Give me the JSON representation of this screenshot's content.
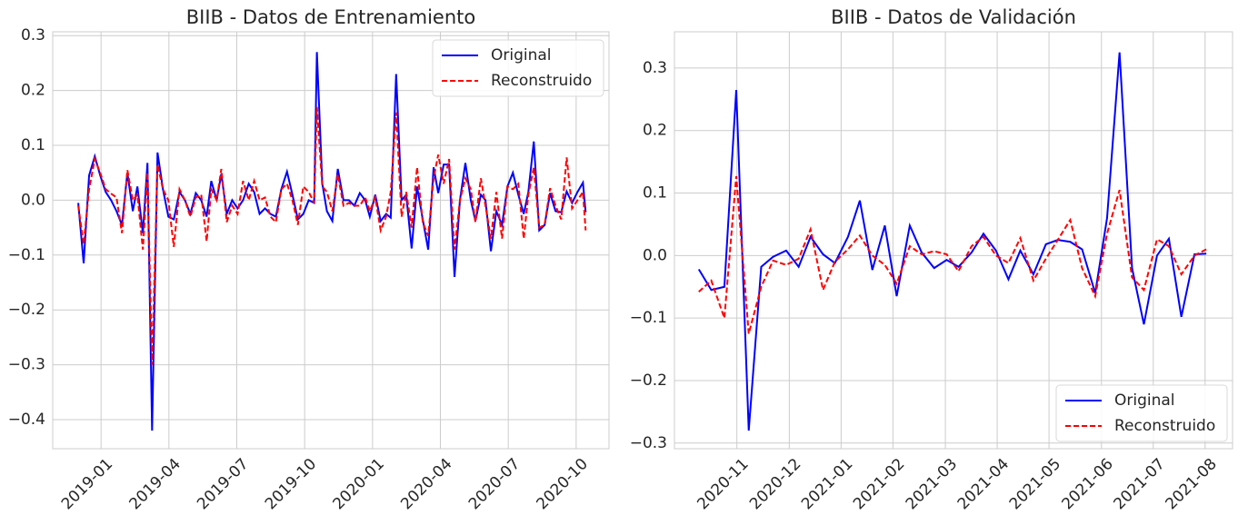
{
  "chart_data": [
    {
      "type": "line",
      "title": "BIIB - Datos de Entrenamiento",
      "grid": true,
      "legend": "upper right",
      "xlim": [
        2018.822,
        2020.871
      ],
      "ylim": [
        -0.453,
        0.307
      ],
      "xticks": [
        {
          "value": 2019,
          "label": "2019-01"
        },
        {
          "value": 2019.25,
          "label": "2019-04"
        },
        {
          "value": 2019.5,
          "label": "2019-07"
        },
        {
          "value": 2019.75,
          "label": "2019-10"
        },
        {
          "value": 2020,
          "label": "2020-01"
        },
        {
          "value": 2020.25,
          "label": "2020-04"
        },
        {
          "value": 2020.5,
          "label": "2020-07"
        },
        {
          "value": 2020.75,
          "label": "2020-10"
        }
      ],
      "yticks": [
        {
          "value": -0.4,
          "label": "−0.4"
        },
        {
          "value": -0.3,
          "label": "−0.3"
        },
        {
          "value": -0.2,
          "label": "−0.2"
        },
        {
          "value": -0.1,
          "label": "−0.1"
        },
        {
          "value": 0,
          "label": "0.0"
        },
        {
          "value": 0.1,
          "label": "0.1"
        },
        {
          "value": 0.2,
          "label": "0.2"
        },
        {
          "value": 0.3,
          "label": "0.3"
        }
      ],
      "x": [
        2018.916,
        2018.936,
        2018.956,
        2018.977,
        2018.997,
        2019.017,
        2019.037,
        2019.057,
        2019.077,
        2019.097,
        2019.117,
        2019.134,
        2019.154,
        2019.171,
        2019.188,
        2019.208,
        2019.228,
        2019.248,
        2019.268,
        2019.289,
        2019.309,
        2019.329,
        2019.349,
        2019.369,
        2019.389,
        2019.406,
        2019.426,
        2019.443,
        2019.463,
        2019.483,
        2019.503,
        2019.523,
        2019.544,
        2019.564,
        2019.584,
        2019.604,
        2019.624,
        2019.644,
        2019.664,
        2019.685,
        2019.705,
        2019.725,
        2019.745,
        2019.765,
        2019.785,
        2019.795,
        2019.815,
        2019.832,
        2019.852,
        2019.872,
        2019.893,
        2019.913,
        2019.933,
        2019.953,
        2019.973,
        2019.99,
        2020.01,
        2020.03,
        2020.05,
        2020.067,
        2020.087,
        2020.107,
        2020.124,
        2020.144,
        2020.164,
        2020.185,
        2020.205,
        2020.225,
        2020.242,
        2020.262,
        2020.282,
        2020.302,
        2020.322,
        2020.342,
        2020.362,
        2020.379,
        2020.399,
        2020.416,
        2020.436,
        2020.456,
        2020.477,
        2020.497,
        2020.517,
        2020.537,
        2020.557,
        2020.574,
        2020.594,
        2020.614,
        2020.634,
        2020.654,
        2020.674,
        2020.695,
        2020.715,
        2020.735,
        2020.755,
        2020.775,
        2020.785
      ],
      "series": [
        {
          "name": "Original",
          "color": "#0000ff",
          "dash": false,
          "values": [
            -0.005,
            -0.115,
            0.045,
            0.08,
            0.045,
            0.015,
            0.0,
            -0.02,
            -0.045,
            0.05,
            -0.02,
            0.025,
            -0.06,
            0.068,
            -0.42,
            0.087,
            0.02,
            -0.03,
            -0.035,
            0.015,
            0.0,
            -0.025,
            0.013,
            0.0,
            -0.03,
            0.035,
            0.0,
            0.048,
            -0.025,
            0.0,
            -0.015,
            0.0,
            0.03,
            0.015,
            -0.025,
            -0.015,
            -0.025,
            -0.03,
            0.02,
            0.052,
            0.01,
            -0.035,
            -0.025,
            0.0,
            -0.005,
            0.27,
            0.03,
            -0.02,
            -0.038,
            0.057,
            0.0,
            0.0,
            -0.01,
            0.013,
            0.0,
            -0.03,
            0.01,
            -0.038,
            -0.025,
            -0.032,
            0.23,
            0.0,
            0.01,
            -0.088,
            0.025,
            -0.035,
            -0.09,
            0.06,
            0.013,
            0.065,
            0.065,
            -0.14,
            0.0,
            0.068,
            0.0,
            -0.038,
            0.01,
            0.0,
            -0.093,
            -0.02,
            -0.045,
            0.025,
            0.05,
            0.01,
            -0.025,
            0.015,
            0.107,
            -0.055,
            -0.045,
            0.013,
            -0.02,
            -0.022,
            0.016,
            -0.005,
            0.015,
            0.032,
            -0.022
          ]
        },
        {
          "name": "Reconstruido",
          "color": "#ff0000",
          "dash": true,
          "values": [
            -0.01,
            -0.08,
            0.02,
            0.075,
            0.05,
            0.02,
            0.012,
            0.005,
            -0.06,
            0.055,
            0.0,
            0.01,
            -0.09,
            0.05,
            -0.3,
            0.065,
            0.02,
            0.0,
            -0.085,
            0.02,
            0.0,
            -0.03,
            0.005,
            0.01,
            -0.075,
            0.02,
            0.0,
            0.057,
            -0.04,
            -0.01,
            -0.025,
            0.035,
            0.0,
            0.035,
            0.0,
            0.005,
            -0.03,
            -0.04,
            0.02,
            0.03,
            0.0,
            -0.045,
            0.025,
            0.015,
            -0.005,
            0.17,
            0.025,
            0.015,
            -0.02,
            0.047,
            -0.01,
            -0.005,
            -0.01,
            -0.01,
            0.005,
            -0.02,
            0.005,
            -0.055,
            -0.03,
            0.015,
            0.16,
            -0.03,
            0.015,
            -0.05,
            0.06,
            -0.04,
            -0.065,
            0.04,
            0.083,
            0.03,
            0.075,
            -0.09,
            0.0,
            0.04,
            0.02,
            -0.04,
            0.04,
            -0.01,
            -0.07,
            0.015,
            -0.07,
            0.025,
            0.02,
            0.03,
            -0.07,
            0.01,
            0.06,
            -0.05,
            -0.045,
            0.022,
            -0.01,
            -0.035,
            0.078,
            -0.015,
            0.0,
            0.015,
            -0.055
          ]
        }
      ]
    },
    {
      "type": "line",
      "title": "BIIB - Datos de Validación",
      "grid": true,
      "legend": "lower right",
      "xlim": [
        2020.733,
        2021.627
      ],
      "ylim": [
        -0.309,
        0.358
      ],
      "xticks": [
        {
          "value": 2020.833,
          "label": "2020-11"
        },
        {
          "value": 2020.917,
          "label": "2020-12"
        },
        {
          "value": 2021,
          "label": "2021-01"
        },
        {
          "value": 2021.083,
          "label": "2021-02"
        },
        {
          "value": 2021.167,
          "label": "2021-03"
        },
        {
          "value": 2021.25,
          "label": "2021-04"
        },
        {
          "value": 2021.333,
          "label": "2021-05"
        },
        {
          "value": 2021.417,
          "label": "2021-06"
        },
        {
          "value": 2021.5,
          "label": "2021-07"
        },
        {
          "value": 2021.583,
          "label": "2021-08"
        }
      ],
      "yticks": [
        {
          "value": -0.3,
          "label": "−0.3"
        },
        {
          "value": -0.2,
          "label": "−0.2"
        },
        {
          "value": -0.1,
          "label": "−0.1"
        },
        {
          "value": 0,
          "label": "0.0"
        },
        {
          "value": 0.1,
          "label": "0.1"
        },
        {
          "value": 0.2,
          "label": "0.2"
        },
        {
          "value": 0.3,
          "label": "0.3"
        }
      ],
      "x": [
        2020.772,
        2020.792,
        2020.813,
        2020.832,
        2020.852,
        2020.872,
        2020.891,
        2020.912,
        2020.932,
        2020.951,
        2020.971,
        2020.99,
        2021.011,
        2021.03,
        2021.05,
        2021.07,
        2021.089,
        2021.11,
        2021.129,
        2021.149,
        2021.169,
        2021.188,
        2021.209,
        2021.228,
        2021.248,
        2021.268,
        2021.287,
        2021.308,
        2021.328,
        2021.347,
        2021.367,
        2021.386,
        2021.407,
        2021.426,
        2021.446,
        2021.466,
        2021.485,
        2021.506,
        2021.525,
        2021.545,
        2021.566,
        2021.585
      ],
      "series": [
        {
          "name": "Original",
          "color": "#0000ff",
          "dash": false,
          "values": [
            -0.022,
            -0.055,
            -0.05,
            0.265,
            -0.28,
            -0.018,
            -0.002,
            0.008,
            -0.018,
            0.03,
            0.002,
            -0.012,
            0.03,
            0.088,
            -0.023,
            0.048,
            -0.065,
            0.048,
            0.005,
            -0.02,
            -0.007,
            -0.018,
            0.005,
            0.035,
            0.008,
            -0.038,
            0.008,
            -0.03,
            0.018,
            0.025,
            0.022,
            0.01,
            -0.06,
            0.06,
            0.325,
            -0.02,
            -0.11,
            0.0,
            0.027,
            -0.098,
            0.002,
            0.003
          ]
        },
        {
          "name": "Reconstruido",
          "color": "#ff0000",
          "dash": true,
          "values": [
            -0.058,
            -0.04,
            -0.1,
            0.127,
            -0.125,
            -0.05,
            -0.008,
            -0.015,
            -0.005,
            0.042,
            -0.055,
            -0.01,
            0.01,
            0.032,
            0.0,
            -0.015,
            -0.045,
            0.015,
            0.002,
            0.007,
            0.002,
            -0.025,
            0.015,
            0.03,
            0.0,
            -0.012,
            0.028,
            -0.04,
            -0.005,
            0.025,
            0.057,
            -0.02,
            -0.065,
            0.035,
            0.105,
            -0.035,
            -0.055,
            0.026,
            0.015,
            -0.03,
            0.0,
            0.01
          ]
        }
      ]
    }
  ]
}
